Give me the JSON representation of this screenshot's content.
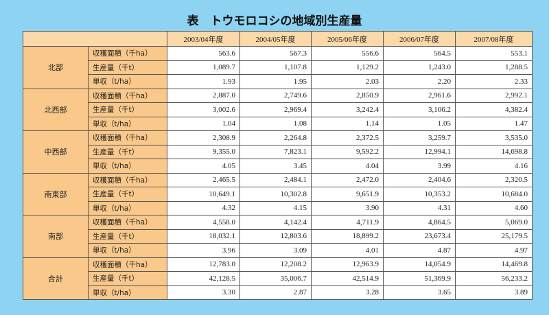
{
  "header": {
    "title": "表　トウモロコシの地域別生産量"
  },
  "table": {
    "columns": [
      "2003/04年度",
      "2004/05年度",
      "2005/06年度",
      "2006/07年度",
      "2007/08年度"
    ],
    "groups": [
      {
        "region": "北部",
        "rows": [
          {
            "label": "収穫面積（千ha）",
            "values": [
              "563.6",
              "567.3",
              "556.6",
              "564.5",
              "553.1"
            ]
          },
          {
            "label": "生産量（千t）",
            "values": [
              "1,089.7",
              "1,107.8",
              "1,129.2",
              "1,243.0",
              "1,288.5"
            ]
          },
          {
            "label": "単収（t/ha）",
            "values": [
              "1.93",
              "1.95",
              "2.03",
              "2.20",
              "2.33"
            ]
          }
        ]
      },
      {
        "region": "北西部",
        "rows": [
          {
            "label": "収穫面積（千ha）",
            "values": [
              "2,887.0",
              "2,749.6",
              "2,850.9",
              "2,961.6",
              "2,992.1"
            ]
          },
          {
            "label": "生産量（千t）",
            "values": [
              "3,002.6",
              "2,969.4",
              "3,242.4",
              "3,106.2",
              "4,382.4"
            ]
          },
          {
            "label": "単収（t/ha）",
            "values": [
              "1.04",
              "1.08",
              "1.14",
              "1.05",
              "1.47"
            ]
          }
        ]
      },
      {
        "region": "中西部",
        "rows": [
          {
            "label": "収穫面積（千ha）",
            "values": [
              "2,308.9",
              "2,264.8",
              "2,372.5",
              "3,259.7",
              "3,535.0"
            ]
          },
          {
            "label": "生産量（千t）",
            "values": [
              "9,355.0",
              "7,823.1",
              "9,592.2",
              "12,994.1",
              "14,698.8"
            ]
          },
          {
            "label": "単収（t/ha）",
            "values": [
              "4.05",
              "3.45",
              "4.04",
              "3.99",
              "4.16"
            ]
          }
        ]
      },
      {
        "region": "南東部",
        "rows": [
          {
            "label": "収穫面積（千ha）",
            "values": [
              "2,465.5",
              "2,484.1",
              "2,472.0",
              "2,404.6",
              "2,320.5"
            ]
          },
          {
            "label": "生産量（千t）",
            "values": [
              "10,649.1",
              "10,302.8",
              "9,651.9",
              "10,353.2",
              "10,684.0"
            ]
          },
          {
            "label": "単収（t/ha）",
            "values": [
              "4.32",
              "4.15",
              "3.90",
              "4.31",
              "4.60"
            ]
          }
        ]
      },
      {
        "region": "南部",
        "rows": [
          {
            "label": "収穫面積（千ha）",
            "values": [
              "4,558.0",
              "4,142.4",
              "4,711.9",
              "4,864.5",
              "5,069.0"
            ]
          },
          {
            "label": "生産量（千t）",
            "values": [
              "18,032.1",
              "12,803.6",
              "18,899.2",
              "23,673.4",
              "25,179.5"
            ]
          },
          {
            "label": "単収（t/ha）",
            "values": [
              "3.96",
              "3.09",
              "4.01",
              "4.87",
              "4.97"
            ]
          }
        ]
      },
      {
        "region": "合計",
        "rows": [
          {
            "label": "収穫面積（千ha）",
            "values": [
              "12,783.0",
              "12,208.2",
              "12,963.9",
              "14,054.9",
              "14,469.8"
            ]
          },
          {
            "label": "生産量（千t）",
            "values": [
              "42,128.5",
              "35,006.7",
              "42,514.9",
              "51,369.9",
              "56,233.2"
            ]
          },
          {
            "label": "単収（t/ha）",
            "values": [
              "3.30",
              "2.87",
              "3.28",
              "3.65",
              "3.89"
            ]
          }
        ]
      }
    ]
  }
}
